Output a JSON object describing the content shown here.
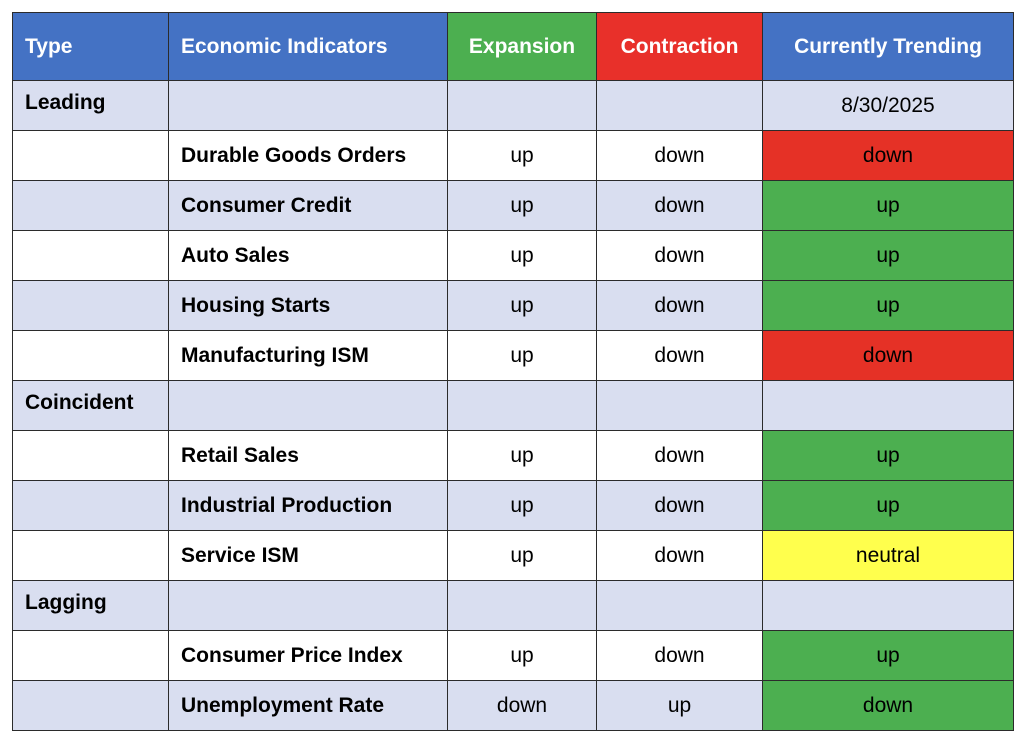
{
  "header": [
    "Type",
    "Economic Indicators",
    "Expansion",
    "Contraction",
    "Currently Trending"
  ],
  "header_colors": [
    "#4472c4",
    "#4472c4",
    "#4caf50",
    "#e8302a",
    "#4472c4"
  ],
  "rows": [
    {
      "type": "Leading",
      "trend": "8/30/2025"
    },
    {
      "indicator": "Durable Goods Orders",
      "expansion": "up",
      "contraction": "down",
      "trend": "down",
      "trend_color": "#e53126"
    },
    {
      "indicator": "Consumer Credit",
      "expansion": "up",
      "contraction": "down",
      "trend": "up",
      "trend_color": "#4caf50"
    },
    {
      "indicator": "Auto Sales",
      "expansion": "up",
      "contraction": "down",
      "trend": "up",
      "trend_color": "#4caf50"
    },
    {
      "indicator": "Housing Starts",
      "expansion": "up",
      "contraction": "down",
      "trend": "up",
      "trend_color": "#4caf50"
    },
    {
      "indicator": "Manufacturing ISM",
      "expansion": "up",
      "contraction": "down",
      "trend": "down",
      "trend_color": "#e53126"
    },
    {
      "type": "Coincident"
    },
    {
      "indicator": "Retail Sales",
      "expansion": "up",
      "contraction": "down",
      "trend": "up",
      "trend_color": "#4caf50"
    },
    {
      "indicator": "Industrial Production",
      "expansion": "up",
      "contraction": "down",
      "trend": "up",
      "trend_color": "#4caf50"
    },
    {
      "indicator": "Service ISM",
      "expansion": "up",
      "contraction": "down",
      "trend": "neutral",
      "trend_color": "#ffff4d"
    },
    {
      "type": "Lagging"
    },
    {
      "indicator": "Consumer Price Index",
      "expansion": "up",
      "contraction": "down",
      "trend": "up",
      "trend_color": "#4caf50"
    },
    {
      "indicator": "Unemployment Rate",
      "expansion": "down",
      "contraction": "up",
      "trend": "down",
      "trend_color": "#4caf50"
    }
  ]
}
